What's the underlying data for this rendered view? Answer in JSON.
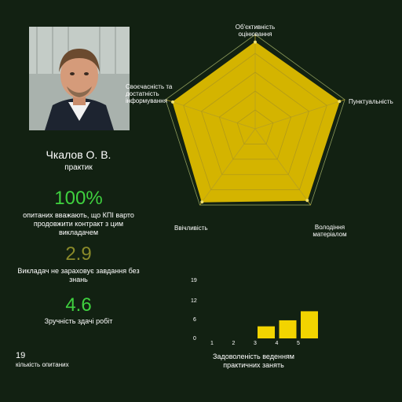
{
  "teacher": {
    "name": "Чкалов О. В.",
    "role": "практик"
  },
  "stats": {
    "recommend_value": "100%",
    "recommend_label": "опитаних вважають, що КПІ варто продовжити контракт з цим викладачем",
    "no_knowledge_value": "2.9",
    "no_knowledge_label": "Викладач не зараховує завдання без знань",
    "convenience_value": "4.6",
    "convenience_label": "Зручність здачі робіт"
  },
  "respondents": {
    "count": "19",
    "label": "кількість опитаних"
  },
  "colors": {
    "background": "#122112",
    "accent_green": "#3fd13f",
    "olive": "#8a8a2a",
    "yellow": "#e8c600",
    "radar_fill": "#d4b400"
  },
  "radar": {
    "labels": [
      "Об'єктивність оцінювання",
      "Пунктуальність",
      "Володіння матеріалом",
      "Ввічливість",
      "Своєчасність та достатність інформування"
    ],
    "max": 5,
    "values": [
      4.6,
      4.7,
      4.7,
      4.8,
      4.6
    ]
  },
  "chart_data": {
    "type": "bar",
    "title": "Задоволеність веденням практичних занять",
    "categories": [
      "1",
      "2",
      "3",
      "4",
      "5"
    ],
    "values": [
      0,
      0,
      4,
      6,
      9
    ],
    "yticks": [
      "19",
      "12",
      "6",
      "0"
    ],
    "ylim": [
      0,
      19
    ]
  }
}
